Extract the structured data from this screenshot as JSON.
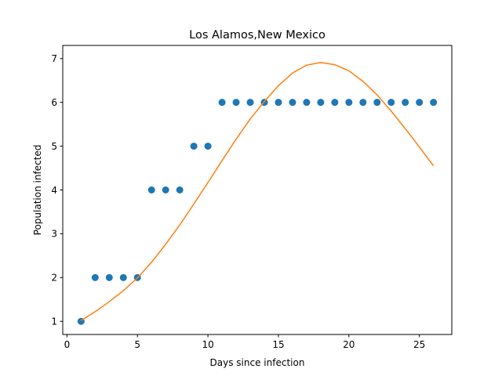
{
  "chart_data": {
    "type": "scatter",
    "title": "Los Alamos,New Mexico",
    "xlabel": "Days since infection",
    "ylabel": "Population infected",
    "xlim": [
      -0.3,
      27.3
    ],
    "ylim": [
      0.7,
      7.3
    ],
    "xticks": [
      0,
      5,
      10,
      15,
      20,
      25
    ],
    "yticks": [
      1,
      2,
      3,
      4,
      5,
      6,
      7
    ],
    "grid": false,
    "series": [
      {
        "kind": "scatter",
        "color": "#1f77b4",
        "x": [
          1,
          2,
          3,
          4,
          5,
          6,
          7,
          8,
          9,
          10,
          11,
          12,
          13,
          14,
          15,
          16,
          17,
          18,
          19,
          20,
          21,
          22,
          23,
          24,
          25,
          26
        ],
        "y": [
          1,
          2,
          2,
          2,
          2,
          4,
          4,
          4,
          5,
          5,
          6,
          6,
          6,
          6,
          6,
          6,
          6,
          6,
          6,
          6,
          6,
          6,
          6,
          6,
          6,
          6
        ]
      },
      {
        "kind": "line",
        "color": "#ff7f0e",
        "x": [
          1,
          2,
          3,
          4,
          5,
          6,
          7,
          8,
          9,
          10,
          11,
          12,
          13,
          14,
          15,
          16,
          17,
          18,
          19,
          20,
          21,
          22,
          23,
          24,
          25,
          26
        ],
        "y": [
          1.02,
          1.22,
          1.45,
          1.7,
          1.99,
          2.35,
          2.76,
          3.2,
          3.68,
          4.17,
          4.67,
          5.16,
          5.62,
          6.02,
          6.38,
          6.67,
          6.85,
          6.91,
          6.86,
          6.72,
          6.48,
          6.17,
          5.8,
          5.4,
          4.98,
          4.55
        ]
      }
    ]
  }
}
